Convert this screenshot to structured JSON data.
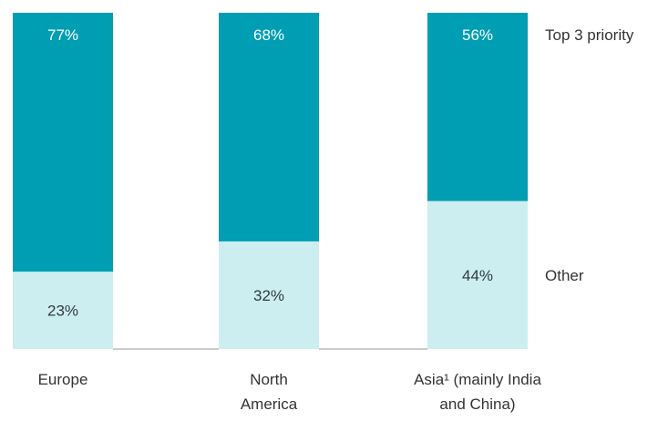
{
  "chart_data": {
    "type": "bar",
    "stacked": true,
    "percent_stacked": true,
    "categories": [
      [
        "Europe"
      ],
      [
        "North",
        "America"
      ],
      [
        "Asia¹ (mainly India",
        "and China)"
      ]
    ],
    "category_labels": [
      "Europe",
      "North America",
      "Asia¹ (mainly India and China)"
    ],
    "series": [
      {
        "name": "Other",
        "values": [
          23,
          32,
          44
        ],
        "color": "#cdeef0",
        "value_labels": [
          "23%",
          "32%",
          "44%"
        ]
      },
      {
        "name": "Top 3 priority",
        "values": [
          77,
          68,
          56
        ],
        "color": "#009eb3",
        "value_labels": [
          "77%",
          "68%",
          "56%"
        ]
      }
    ],
    "ylim": [
      0,
      100
    ],
    "legend": "right, aligned with segments",
    "grid": false,
    "baseline_color": "#999999"
  }
}
